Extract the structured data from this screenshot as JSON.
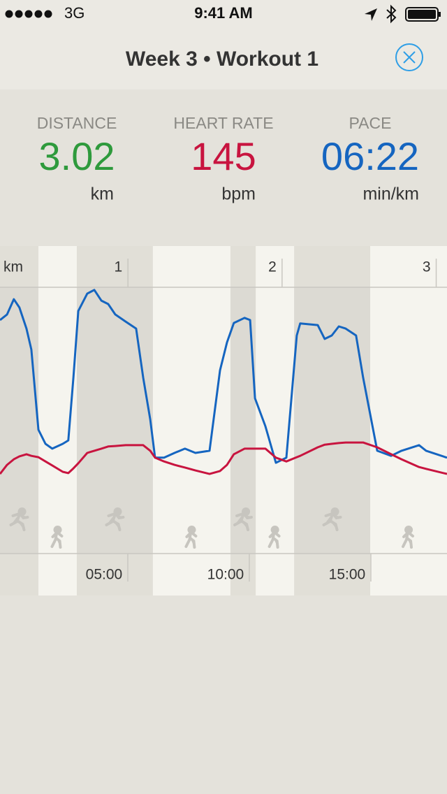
{
  "status_bar": {
    "carrier": "3G",
    "time": "9:41 AM"
  },
  "header": {
    "title": "Week 3 • Workout 1"
  },
  "stats": [
    {
      "label": "DISTANCE",
      "value": "3.02",
      "unit": "km",
      "color": "#2e9a3c"
    },
    {
      "label": "HEART RATE",
      "value": "145",
      "unit": "bpm",
      "color": "#c8143f"
    },
    {
      "label": "PACE",
      "value": "06:22",
      "unit": "min/km",
      "color": "#1565c0"
    }
  ],
  "chart_data": {
    "type": "line",
    "x": [
      0.72,
      1.01,
      1.29,
      1.52,
      1.81,
      2.01,
      2.3,
      2.59,
      2.87,
      3.3,
      3.53,
      3.74,
      3.94,
      4.31,
      4.6,
      4.89,
      5.17,
      5.46,
      5.89,
      6.32,
      6.61,
      6.9,
      7.1,
      7.47,
      7.9,
      8.33,
      8.76,
      9.34,
      9.77,
      10.06,
      10.34,
      10.78,
      11.01,
      11.21,
      11.64,
      12.07,
      12.5,
      12.93,
      13.07,
      13.79,
      14.08,
      14.37,
      14.66,
      14.94,
      15.37,
      15.66,
      16.24,
      16.81,
      17.24,
      17.96,
      18.25,
      19.11
    ],
    "xlim": [
      0.72,
      19.11
    ],
    "xticks": [
      {
        "value": 5,
        "label": "05:00"
      },
      {
        "value": 10,
        "label": "10:00"
      },
      {
        "value": 15,
        "label": "15:00"
      }
    ],
    "ylim": [
      0,
      100
    ],
    "x2label": "km",
    "x2lim": [
      0.17,
      3.07
    ],
    "x2ticks": [
      1,
      2,
      3
    ],
    "walk_intervals": [
      [
        2.3,
        3.88
      ],
      [
        7.01,
        10.2
      ],
      [
        11.24,
        12.82
      ],
      [
        15.95,
        19.11
      ]
    ],
    "series": [
      {
        "color": "#1565c0",
        "values": [
          87.7,
          89.8,
          95.5,
          92.4,
          84.5,
          76.6,
          46.5,
          41.2,
          39.4,
          41.2,
          42.5,
          66.1,
          91.1,
          97.6,
          99.0,
          95.0,
          93.7,
          89.8,
          87.1,
          84.5,
          66.1,
          50.4,
          36.0,
          36.0,
          37.8,
          39.4,
          37.8,
          38.6,
          68.8,
          79.3,
          86.6,
          88.5,
          87.7,
          58.3,
          47.8,
          34.1,
          36.0,
          81.9,
          86.4,
          85.8,
          80.6,
          81.9,
          85.3,
          84.5,
          81.9,
          66.1,
          38.6,
          36.7,
          38.6,
          40.7,
          38.6,
          36.0
        ]
      },
      {
        "color": "#c8143f",
        "values": [
          29.9,
          33.3,
          35.4,
          36.5,
          37.3,
          36.7,
          36.2,
          34.6,
          33.1,
          30.7,
          30.2,
          32.0,
          33.9,
          37.8,
          38.6,
          39.4,
          40.2,
          40.4,
          40.7,
          40.7,
          40.7,
          38.6,
          36.0,
          34.6,
          33.3,
          32.3,
          31.2,
          29.9,
          31.0,
          33.3,
          37.3,
          39.4,
          39.4,
          39.4,
          39.4,
          36.0,
          34.6,
          36.2,
          36.7,
          39.9,
          40.9,
          41.2,
          41.5,
          41.7,
          41.7,
          41.7,
          39.9,
          37.3,
          35.4,
          32.5,
          31.8,
          29.9
        ]
      }
    ]
  }
}
